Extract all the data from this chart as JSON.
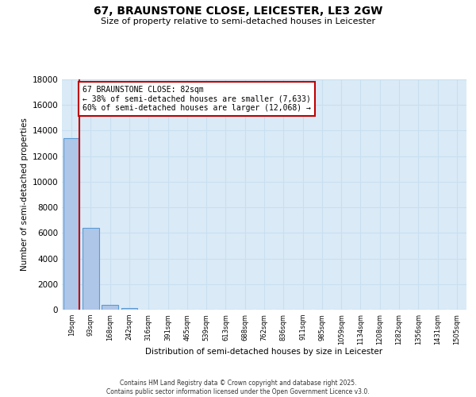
{
  "title_line1": "67, BRAUNSTONE CLOSE, LEICESTER, LE3 2GW",
  "title_line2": "Size of property relative to semi-detached houses in Leicester",
  "xlabel": "Distribution of semi-detached houses by size in Leicester",
  "ylabel": "Number of semi-detached properties",
  "property_label": "67 BRAUNSTONE CLOSE: 82sqm",
  "pct_smaller": 38,
  "count_smaller": "7,633",
  "pct_larger": 60,
  "count_larger": "12,068",
  "bin_labels": [
    "19sqm",
    "93sqm",
    "168sqm",
    "242sqm",
    "316sqm",
    "391sqm",
    "465sqm",
    "539sqm",
    "613sqm",
    "688sqm",
    "762sqm",
    "836sqm",
    "911sqm",
    "985sqm",
    "1059sqm",
    "1134sqm",
    "1208sqm",
    "1282sqm",
    "1356sqm",
    "1431sqm",
    "1505sqm"
  ],
  "bar_values": [
    13400,
    6400,
    350,
    100,
    0,
    0,
    0,
    0,
    0,
    0,
    0,
    0,
    0,
    0,
    0,
    0,
    0,
    0,
    0,
    0,
    0
  ],
  "bar_color": "#aec6e8",
  "bar_edge_color": "#5b9bd5",
  "vline_color": "#c00000",
  "annotation_box_color": "#c00000",
  "grid_color": "#c8dff0",
  "background_color": "#daeaf7",
  "ylim_max": 18000,
  "yticks": [
    0,
    2000,
    4000,
    6000,
    8000,
    10000,
    12000,
    14000,
    16000,
    18000
  ],
  "footer_line1": "Contains HM Land Registry data © Crown copyright and database right 2025.",
  "footer_line2": "Contains public sector information licensed under the Open Government Licence v3.0.",
  "vline_x": 0.42
}
